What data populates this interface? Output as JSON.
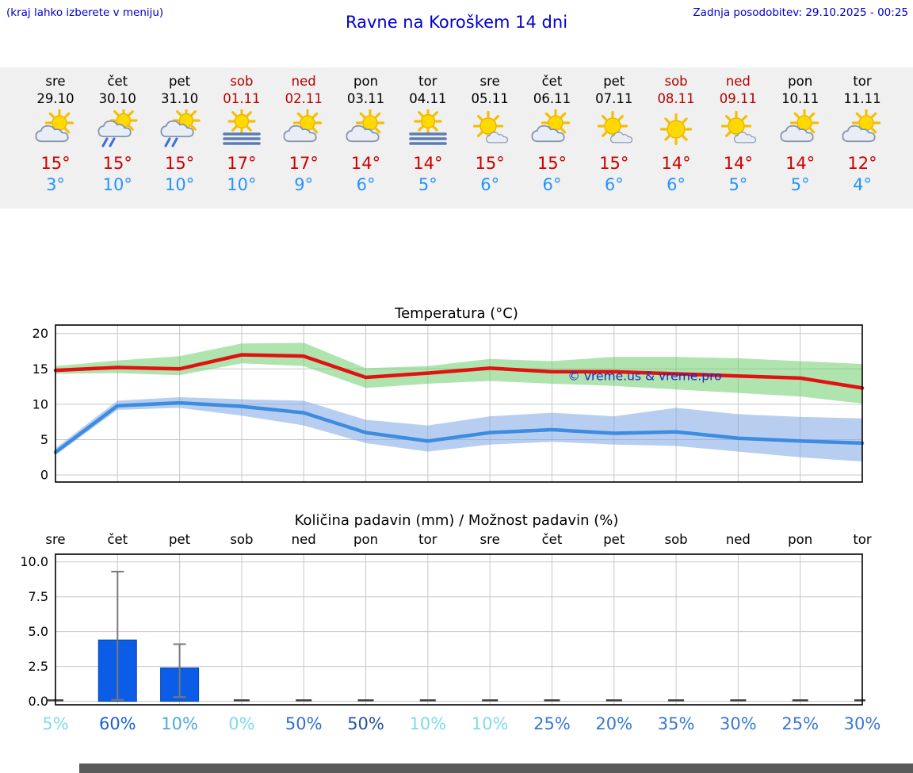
{
  "header": {
    "hint": "(kraj lahko izberete v meniju)",
    "title": "Ravne na Koroškem 14 dni",
    "last_update": "Zadnja posodobitev: 29.10.2025 - 00:25"
  },
  "colors": {
    "header_blue": "#0000cc",
    "temp_max_red": "#cc0000",
    "temp_min_blue": "#2593ff",
    "weekend_red": "#b50000",
    "strip_background": "#f0f0f0"
  },
  "days": [
    {
      "name": "sre",
      "date": "29.10",
      "weekend": false,
      "icon": "partly-cloudy",
      "tmax": "15°",
      "tmin": "3°"
    },
    {
      "name": "čet",
      "date": "30.10",
      "weekend": false,
      "icon": "rain-showers",
      "tmax": "15°",
      "tmin": "10°"
    },
    {
      "name": "pet",
      "date": "31.10",
      "weekend": false,
      "icon": "rain-showers",
      "tmax": "15°",
      "tmin": "10°"
    },
    {
      "name": "sob",
      "date": "01.11",
      "weekend": true,
      "icon": "fog",
      "tmax": "17°",
      "tmin": "10°"
    },
    {
      "name": "ned",
      "date": "02.11",
      "weekend": true,
      "icon": "partly-cloudy",
      "tmax": "17°",
      "tmin": "9°"
    },
    {
      "name": "pon",
      "date": "03.11",
      "weekend": false,
      "icon": "partly-cloudy",
      "tmax": "14°",
      "tmin": "6°"
    },
    {
      "name": "tor",
      "date": "04.11",
      "weekend": false,
      "icon": "fog",
      "tmax": "14°",
      "tmin": "5°"
    },
    {
      "name": "sre",
      "date": "05.11",
      "weekend": false,
      "icon": "mostly-sunny",
      "tmax": "15°",
      "tmin": "6°"
    },
    {
      "name": "čet",
      "date": "06.11",
      "weekend": false,
      "icon": "partly-cloudy",
      "tmax": "15°",
      "tmin": "6°"
    },
    {
      "name": "pet",
      "date": "07.11",
      "weekend": false,
      "icon": "mostly-sunny",
      "tmax": "15°",
      "tmin": "6°"
    },
    {
      "name": "sob",
      "date": "08.11",
      "weekend": true,
      "icon": "sunny",
      "tmax": "14°",
      "tmin": "6°"
    },
    {
      "name": "ned",
      "date": "09.11",
      "weekend": true,
      "icon": "mostly-sunny",
      "tmax": "14°",
      "tmin": "5°"
    },
    {
      "name": "pon",
      "date": "10.11",
      "weekend": false,
      "icon": "partly-cloudy",
      "tmax": "14°",
      "tmin": "5°"
    },
    {
      "name": "tor",
      "date": "11.11",
      "weekend": false,
      "icon": "partly-cloudy",
      "tmax": "12°",
      "tmin": "4°"
    }
  ],
  "chart_data": [
    {
      "type": "line",
      "title": "Temperatura (°C)",
      "x_labels": [
        "sre",
        "čet",
        "pet",
        "sob",
        "ned",
        "pon",
        "tor",
        "sre",
        "čet",
        "pet",
        "sob",
        "ned",
        "pon",
        "tor"
      ],
      "ylim": [
        0,
        20
      ],
      "yticks": [
        0,
        5,
        10,
        15,
        20
      ],
      "grid": true,
      "legend_position": "none",
      "watermark": "© vreme.us & vreme.pro",
      "watermark_color": "#2222cc",
      "series": [
        {
          "name": "temp-max",
          "color": "#e11212",
          "band_color": "rgba(110,205,110,0.55)",
          "values": [
            14.8,
            15.2,
            15.0,
            17.0,
            16.8,
            13.8,
            14.4,
            15.1,
            14.6,
            14.6,
            14.3,
            14.0,
            13.7,
            12.3
          ],
          "band_high": [
            15.4,
            16.2,
            16.8,
            18.6,
            18.7,
            15.1,
            15.4,
            16.4,
            16.1,
            16.7,
            16.7,
            16.5,
            16.1,
            15.7
          ],
          "band_low": [
            14.3,
            14.4,
            14.1,
            15.8,
            15.4,
            12.3,
            12.9,
            13.3,
            12.9,
            12.6,
            12.1,
            11.6,
            11.1,
            10.1
          ]
        },
        {
          "name": "temp-min",
          "color": "#3c8ce0",
          "band_color": "rgba(125,165,230,0.55)",
          "values": [
            3.2,
            9.8,
            10.2,
            9.7,
            8.8,
            6.0,
            4.8,
            6.0,
            6.4,
            5.9,
            6.1,
            5.2,
            4.8,
            4.5
          ],
          "band_high": [
            3.8,
            10.5,
            11.0,
            10.7,
            10.5,
            7.8,
            7.0,
            8.3,
            8.8,
            8.3,
            9.5,
            8.6,
            8.2,
            8.0
          ],
          "band_low": [
            2.8,
            9.2,
            9.5,
            8.4,
            7.0,
            4.5,
            3.3,
            4.3,
            4.7,
            4.3,
            4.1,
            3.3,
            2.5,
            1.9
          ]
        }
      ]
    },
    {
      "type": "bar",
      "title": "Količina padavin (mm) / Možnost padavin (%)",
      "categories": [
        "sre",
        "čet",
        "pet",
        "sob",
        "ned",
        "pon",
        "tor",
        "sre",
        "čet",
        "pet",
        "sob",
        "ned",
        "pon",
        "tor"
      ],
      "values": [
        0,
        4.4,
        2.4,
        0,
        0,
        0,
        0,
        0,
        0,
        0,
        0,
        0,
        0,
        0
      ],
      "whisker_low": [
        0,
        0.1,
        0.3,
        0,
        0,
        0,
        0,
        0,
        0,
        0,
        0,
        0,
        0,
        0
      ],
      "whisker_high": [
        0,
        9.3,
        4.1,
        0,
        0,
        0,
        0,
        0,
        0,
        0,
        0,
        0,
        0,
        0
      ],
      "bar_color": "#0b5ce6",
      "ylim": [
        0,
        10
      ],
      "yticks": [
        0,
        2.5,
        5,
        7.5,
        10
      ],
      "grid": true,
      "probabilities": [
        "5%",
        "60%",
        "10%",
        "0%",
        "50%",
        "50%",
        "10%",
        "10%",
        "25%",
        "20%",
        "35%",
        "30%",
        "25%",
        "30%"
      ],
      "prob_colors": [
        "#7fdbe8",
        "#1b5fd9",
        "#4fa8e0",
        "#7fdbe8",
        "#2f6fd0",
        "#24549f",
        "#7fdbe8",
        "#7fdbe8",
        "#3a78d2",
        "#3a78d2",
        "#3a78d2",
        "#3a78d2",
        "#3a78d2",
        "#3a78d2"
      ]
    }
  ]
}
